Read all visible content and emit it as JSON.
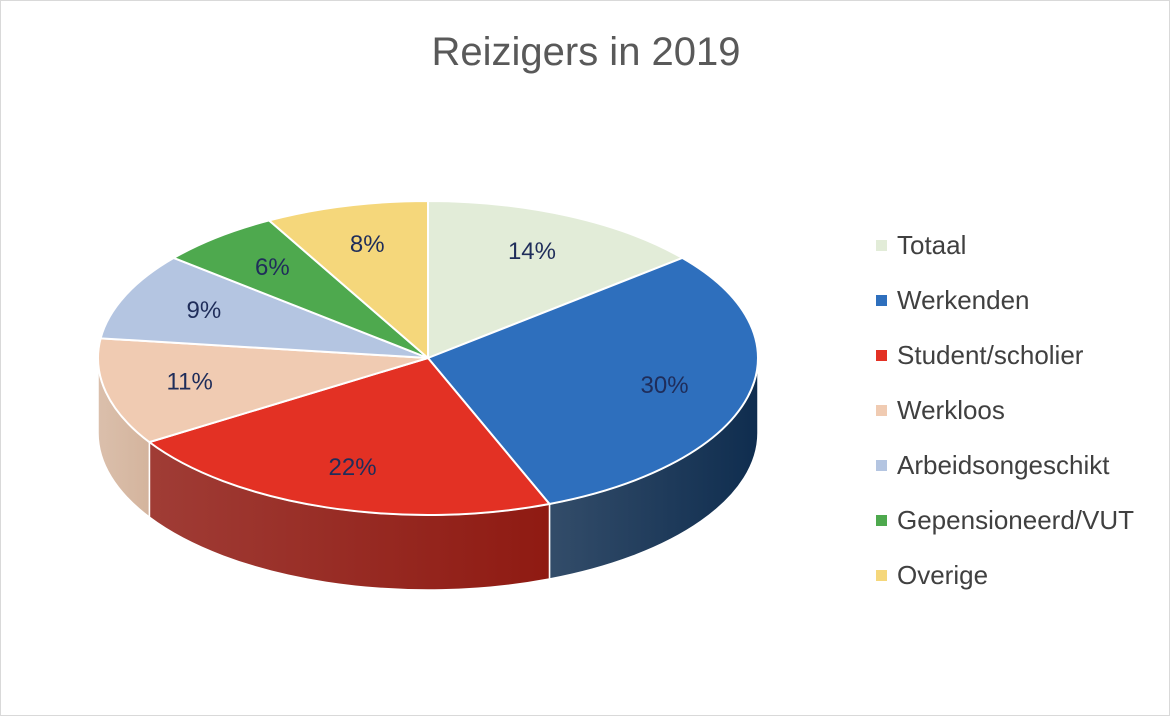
{
  "chart_data": {
    "type": "pie",
    "title": "Reizigers in 2019",
    "categories": [
      "Totaal",
      "Werkenden",
      "Student/scholier",
      "Werkloos",
      "Arbeidsongeschikt",
      "Gepensioneerd/VUT",
      "Overige"
    ],
    "values": [
      14,
      30,
      22,
      11,
      9,
      6,
      8
    ],
    "value_labels": [
      "14%",
      "30%",
      "22%",
      "11%",
      "9%",
      "6%",
      "8%"
    ],
    "colors": [
      "#e2ecd8",
      "#2e6fbd",
      "#e33124",
      "#f0cbb2",
      "#b4c5e1",
      "#4ea94e",
      "#f5d77b"
    ],
    "side_colors": [
      "#b7c1ad",
      "#0f2d4f",
      "#8f1a12",
      "#d4b49d",
      "#8f9fb8",
      "#2f7a32",
      "#c8ad55"
    ],
    "label_color": "#1f2d5a",
    "legend_position": "right",
    "style": "3d-tilted"
  }
}
